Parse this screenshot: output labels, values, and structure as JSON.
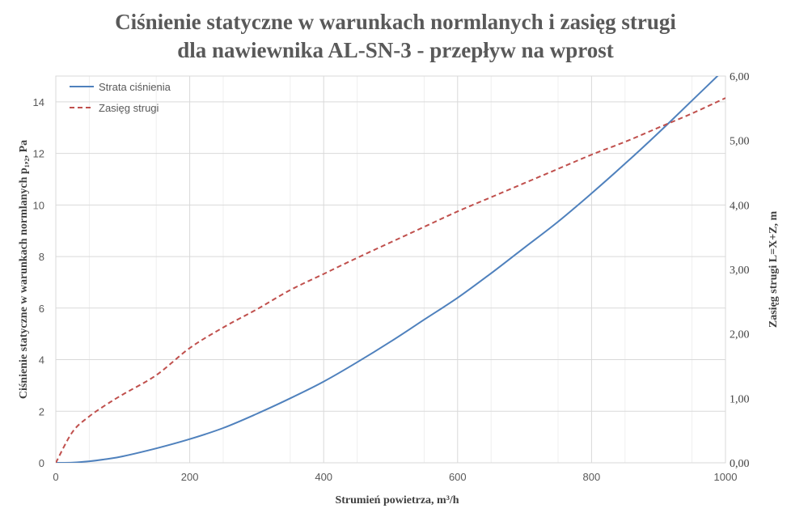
{
  "chart_data": {
    "type": "line",
    "title_line1": "Ciśnienie statyczne w warunkach  normlanych  i zasięg strugi",
    "title_line2": "dla nawiewnika  AL-SN-3 - przepływ  na wprost",
    "xlabel": "Strumień  powietrza,  m³/h",
    "ylabel": "Ciśnienie statyczne w warunkach  normlanych  p₁,₂, Pa",
    "y2label": "Zasięg strugi  L=X+Z,  m",
    "xlim": [
      0,
      1000
    ],
    "ylim": [
      0,
      15
    ],
    "y2lim": [
      0,
      6
    ],
    "x_ticks": [
      "0",
      "200",
      "400",
      "600",
      "800",
      "1000"
    ],
    "y_ticks": [
      "0",
      "2",
      "4",
      "6",
      "8",
      "10",
      "12",
      "14"
    ],
    "y2_ticks": [
      "0,00",
      "1,00",
      "2,00",
      "3,00",
      "4,00",
      "5,00",
      "6,00"
    ],
    "grid": true,
    "legend_position": "top-left",
    "x": [
      0,
      25,
      50,
      75,
      100,
      150,
      200,
      250,
      300,
      350,
      400,
      450,
      500,
      550,
      600,
      650,
      700,
      750,
      800,
      850,
      900,
      950,
      1000
    ],
    "series": [
      {
        "name": "Strata ciśnienia",
        "axis": "left",
        "color": "#4f81bd",
        "style": "solid",
        "values": [
          0,
          0.01,
          0.06,
          0.14,
          0.25,
          0.56,
          0.92,
          1.35,
          1.9,
          2.5,
          3.15,
          3.9,
          4.7,
          5.55,
          6.4,
          7.35,
          8.35,
          9.35,
          10.45,
          11.6,
          12.8,
          14.05,
          15.3
        ]
      },
      {
        "name": "Zasięg strugi",
        "axis": "right",
        "color": "#c0504d",
        "style": "dashed",
        "values": [
          0,
          0.48,
          0.72,
          0.9,
          1.06,
          1.36,
          1.78,
          2.1,
          2.38,
          2.68,
          2.93,
          3.18,
          3.42,
          3.66,
          3.9,
          4.12,
          4.34,
          4.56,
          4.78,
          4.98,
          5.2,
          5.42,
          5.66
        ]
      }
    ]
  }
}
